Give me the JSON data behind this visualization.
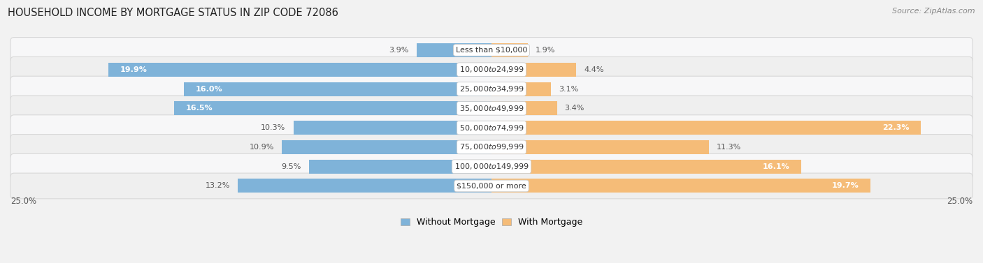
{
  "title": "HOUSEHOLD INCOME BY MORTGAGE STATUS IN ZIP CODE 72086",
  "source": "Source: ZipAtlas.com",
  "categories": [
    "Less than $10,000",
    "$10,000 to $24,999",
    "$25,000 to $34,999",
    "$35,000 to $49,999",
    "$50,000 to $74,999",
    "$75,000 to $99,999",
    "$100,000 to $149,999",
    "$150,000 or more"
  ],
  "without_mortgage": [
    3.9,
    19.9,
    16.0,
    16.5,
    10.3,
    10.9,
    9.5,
    13.2
  ],
  "with_mortgage": [
    1.9,
    4.4,
    3.1,
    3.4,
    22.3,
    11.3,
    16.1,
    19.7
  ],
  "color_without": "#7fb3d9",
  "color_with": "#f5bc78",
  "bg_color": "#f2f2f2",
  "row_color_light": "#f7f7f7",
  "row_color_dark": "#ebebeb",
  "xlim": 25.0,
  "legend_labels": [
    "Without Mortgage",
    "With Mortgage"
  ],
  "axis_label_left": "25.0%",
  "axis_label_right": "25.0%",
  "title_fontsize": 10.5,
  "source_fontsize": 8,
  "label_fontsize": 8.0,
  "value_fontsize": 8.0,
  "axis_tick_fontsize": 8.5
}
